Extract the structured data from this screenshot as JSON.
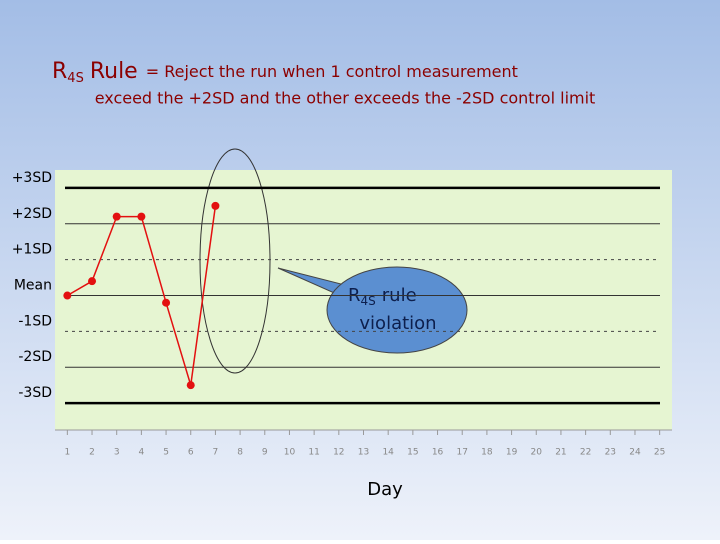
{
  "chart_data": {
    "type": "line",
    "title": {
      "main": "R",
      "sub": "4S",
      "rule": "Rule",
      "rest": "= Reject the run when 1 control measurement"
    },
    "subtitle": "exceed the +2SD and the other exceeds the -2SD control limit",
    "x_label": "Day",
    "x": [
      1,
      2,
      3,
      4,
      5,
      6,
      7
    ],
    "values": [
      0,
      0.4,
      2.2,
      2.2,
      -0.2,
      -2.5,
      2.5
    ],
    "color": "#e31010",
    "xlim": [
      0.5,
      25.5
    ],
    "xticks": [
      1,
      2,
      3,
      4,
      5,
      6,
      7,
      8,
      9,
      10,
      11,
      12,
      13,
      14,
      15,
      16,
      17,
      18,
      19,
      20,
      21,
      22,
      23,
      24,
      25
    ],
    "ylim": [
      -3.75,
      3.5
    ],
    "yticks": [
      {
        "value": 3,
        "label": "+3SD"
      },
      {
        "value": 2,
        "label": "+2SD"
      },
      {
        "value": 1,
        "label": "+1SD"
      },
      {
        "value": 0,
        "label": "Mean"
      },
      {
        "value": -1,
        "label": "-1SD"
      },
      {
        "value": -2,
        "label": "-2SD"
      },
      {
        "value": -3,
        "label": "-3SD"
      }
    ],
    "annotation": {
      "main": "R",
      "sub": "4S",
      "rest": "rule",
      "line2": "violation"
    }
  }
}
